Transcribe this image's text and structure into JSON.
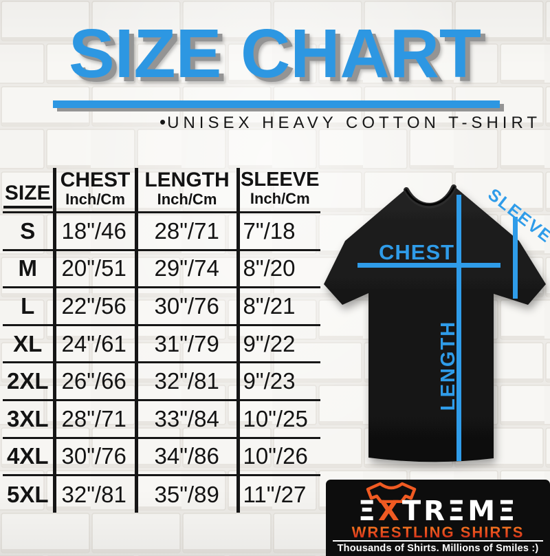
{
  "page": {
    "title": "SIZE CHART",
    "subtitle_bullet": "•",
    "subtitle": "UNISEX HEAVY COTTON T-SHIRT"
  },
  "table": {
    "size_header": "SIZE",
    "columns": [
      {
        "name": "CHEST",
        "unit": "Inch/Cm"
      },
      {
        "name": "LENGTH",
        "unit": "Inch/Cm"
      },
      {
        "name": "SLEEVE",
        "unit": "Inch/Cm"
      }
    ],
    "rows": [
      {
        "size": "S",
        "chest": "18\"/46",
        "length": "28\"/71",
        "sleeve": "7\"/18"
      },
      {
        "size": "M",
        "chest": "20\"/51",
        "length": "29\"/74",
        "sleeve": "8\"/20"
      },
      {
        "size": "L",
        "chest": "22\"/56",
        "length": "30\"/76",
        "sleeve": "8\"/21"
      },
      {
        "size": "XL",
        "chest": "24\"/61",
        "length": "31\"/79",
        "sleeve": "9\"/22"
      },
      {
        "size": "2XL",
        "chest": "26\"/66",
        "length": "32\"/81",
        "sleeve": "9\"/23"
      },
      {
        "size": "3XL",
        "chest": "28\"/71",
        "length": "33\"/84",
        "sleeve": "10\"/25"
      },
      {
        "size": "4XL",
        "chest": "30\"/76",
        "length": "34\"/86",
        "sleeve": "10\"/26"
      },
      {
        "size": "5XL",
        "chest": "32\"/81",
        "length": "35\"/89",
        "sleeve": "11\"/27"
      }
    ]
  },
  "shirt_diagram": {
    "chest_label": "CHEST",
    "length_label": "LENGTH",
    "sleeve_label": "SLEEVE"
  },
  "logo": {
    "brand": "EXTREME",
    "brand_sub": "WRESTLING SHIRTS",
    "tagline": "Thousands of Shirts. Millions of Smiles :)"
  },
  "colors": {
    "accent_blue": "#2d97e2",
    "measure_line_blue": "#2f9ce9",
    "logo_orange": "#f05a22",
    "title_shadow_gray": "#949494",
    "table_line_black": "#161616"
  },
  "chart_data": {
    "type": "table",
    "title": "SIZE CHART",
    "subtitle": "UNISEX HEAVY COTTON T-SHIRT",
    "columns": [
      "SIZE",
      "CHEST Inch/Cm",
      "LENGTH Inch/Cm",
      "SLEEVE Inch/Cm"
    ],
    "rows": [
      [
        "S",
        "18\"/46",
        "28\"/71",
        "7\"/18"
      ],
      [
        "M",
        "20\"/51",
        "29\"/74",
        "8\"/20"
      ],
      [
        "L",
        "22\"/56",
        "30\"/76",
        "8\"/21"
      ],
      [
        "XL",
        "24\"/61",
        "31\"/79",
        "9\"/22"
      ],
      [
        "2XL",
        "26\"/66",
        "32\"/81",
        "9\"/23"
      ],
      [
        "3XL",
        "28\"/71",
        "33\"/84",
        "10\"/25"
      ],
      [
        "4XL",
        "30\"/76",
        "34\"/86",
        "10\"/26"
      ],
      [
        "5XL",
        "32\"/81",
        "35\"/89",
        "11\"/27"
      ]
    ]
  }
}
